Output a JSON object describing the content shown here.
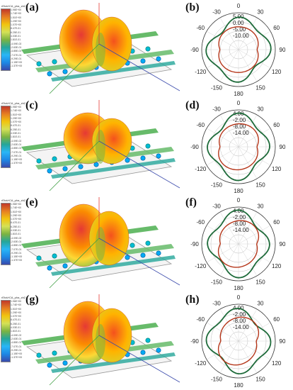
{
  "panels": [
    {
      "label": "(a)"
    },
    {
      "label": "(b)"
    },
    {
      "label": "(c)"
    },
    {
      "label": "(d)"
    },
    {
      "label": "(e)"
    },
    {
      "label": "(f)"
    },
    {
      "label": "(g)"
    },
    {
      "label": "(h)"
    }
  ],
  "colorbar": {
    "title": "rEtot/rCA_pha_zb2",
    "colors": [
      "#c0392b",
      "#e67e22",
      "#f1c40f",
      "#d4e157",
      "#7cb342",
      "#26a69a",
      "#29b6f6",
      "#1e88e5",
      "#3949ab"
    ],
    "tick_labels": [
      "1.96E+00",
      "1.74E+00",
      "1.51E+00",
      "1.29E+00",
      "1.07E+00",
      "8.47E-01",
      "6.25E-01",
      "4.03E-01",
      "1.81E-01",
      "-4.09E-02",
      "-2.63E-01",
      "-4.85E-01",
      "-7.07E-01",
      "-9.29E-01",
      "-1.15E+00",
      "-1.37E+00"
    ]
  },
  "polar": {
    "angle_labels": [
      "0",
      "30",
      "60",
      "90",
      "120",
      "150",
      "180",
      "-150",
      "-120",
      "-90",
      "-60",
      "-30"
    ],
    "rings_b": [
      "5.00",
      "0.00",
      "-5.00",
      "-10.00"
    ],
    "rings_dfh": [
      "4.00",
      "-2.00",
      "-8.00",
      "-14.00"
    ],
    "colors": {
      "outer": "#1e6b3a",
      "inner": "#b5361a"
    }
  }
}
